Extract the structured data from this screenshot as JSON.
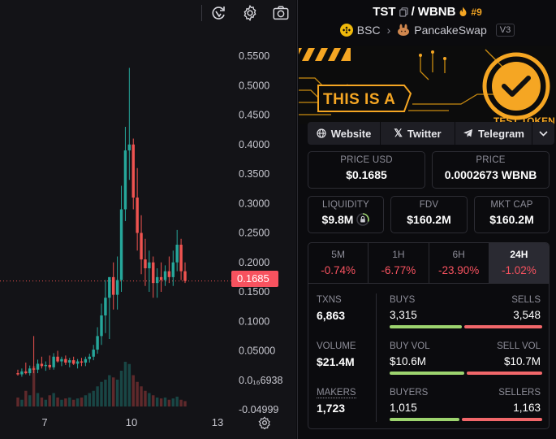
{
  "pair": {
    "base": "TST",
    "separator": "/",
    "quote": "WBNB",
    "rank": "#9"
  },
  "chain": {
    "name": "BSC",
    "dex": "PancakeSwap",
    "version": "V3"
  },
  "banner": {
    "text": "THIS IS A",
    "subtext": "TEST TOKEN"
  },
  "links": [
    {
      "label": "Website",
      "icon": "globe-icon"
    },
    {
      "label": "Twitter",
      "icon": "x-icon"
    },
    {
      "label": "Telegram",
      "icon": "telegram-icon"
    }
  ],
  "price_usd": {
    "label": "PRICE USD",
    "value": "$0.1685"
  },
  "price_native": {
    "label": "PRICE",
    "value": "0.0002673 WBNB"
  },
  "liquidity": {
    "label": "LIQUIDITY",
    "value": "$9.8M"
  },
  "fdv": {
    "label": "FDV",
    "value": "$160.2M"
  },
  "mkt_cap": {
    "label": "MKT CAP",
    "value": "$160.2M"
  },
  "timeframes": [
    {
      "label": "5M",
      "change": "-0.74%"
    },
    {
      "label": "1H",
      "change": "-6.77%"
    },
    {
      "label": "6H",
      "change": "-23.90%"
    },
    {
      "label": "24H",
      "change": "-1.02%"
    }
  ],
  "txns": {
    "label": "TXNS",
    "value": "6,863"
  },
  "buys": {
    "label": "BUYS",
    "value": "3,315"
  },
  "sells": {
    "label": "SELLS",
    "value": "3,548"
  },
  "volume": {
    "label": "VOLUME",
    "value": "$21.4M"
  },
  "buy_vol": {
    "label": "BUY VOL",
    "value": "$10.6M"
  },
  "sell_vol": {
    "label": "SELL VOL",
    "value": "$10.7M"
  },
  "makers": {
    "label": "MAKERS",
    "value": "1,723"
  },
  "buyers": {
    "label": "BUYERS",
    "value": "1,015"
  },
  "sellers": {
    "label": "SELLERS",
    "value": "1,163"
  },
  "ratios": {
    "buys": 0.483,
    "buy_vol": 0.498,
    "buyers": 0.466
  },
  "chart_data": {
    "type": "candlestick",
    "current_price_label": "0.1685",
    "current_price": 0.1685,
    "y_ticks": [
      {
        "v": 0.55,
        "label": "0.5500"
      },
      {
        "v": 0.5,
        "label": "0.5000"
      },
      {
        "v": 0.45,
        "label": "0.4500"
      },
      {
        "v": 0.4,
        "label": "0.4000"
      },
      {
        "v": 0.35,
        "label": "0.3500"
      },
      {
        "v": 0.3,
        "label": "0.3000"
      },
      {
        "v": 0.25,
        "label": "0.2500"
      },
      {
        "v": 0.2,
        "label": "0.2000"
      },
      {
        "v": 0.15,
        "label": "0.1500"
      },
      {
        "v": 0.1,
        "label": "0.1000"
      },
      {
        "v": 0.05,
        "label": "0.05000"
      },
      {
        "v": 0.0,
        "label": "0.0₁₆6938"
      },
      {
        "v": -0.05,
        "label": "-0.04999"
      }
    ],
    "x_ticks": [
      "7",
      "10",
      "13"
    ],
    "colors": {
      "up": "#26a69a",
      "down": "#ef5350",
      "bg": "#131317"
    },
    "candles": [
      {
        "o": 0.012,
        "h": 0.018,
        "l": 0.008,
        "c": 0.01
      },
      {
        "o": 0.01,
        "h": 0.02,
        "l": 0.006,
        "c": 0.015
      },
      {
        "o": 0.015,
        "h": 0.03,
        "l": 0.01,
        "c": 0.012
      },
      {
        "o": 0.012,
        "h": 0.025,
        "l": 0.008,
        "c": 0.02
      },
      {
        "o": 0.02,
        "h": 0.075,
        "l": 0.012,
        "c": 0.018
      },
      {
        "o": 0.018,
        "h": 0.035,
        "l": 0.012,
        "c": 0.028
      },
      {
        "o": 0.028,
        "h": 0.04,
        "l": 0.02,
        "c": 0.024
      },
      {
        "o": 0.024,
        "h": 0.032,
        "l": 0.016,
        "c": 0.026
      },
      {
        "o": 0.026,
        "h": 0.042,
        "l": 0.018,
        "c": 0.022
      },
      {
        "o": 0.022,
        "h": 0.046,
        "l": 0.018,
        "c": 0.04
      },
      {
        "o": 0.04,
        "h": 0.05,
        "l": 0.03,
        "c": 0.032
      },
      {
        "o": 0.032,
        "h": 0.04,
        "l": 0.024,
        "c": 0.036
      },
      {
        "o": 0.036,
        "h": 0.042,
        "l": 0.026,
        "c": 0.03
      },
      {
        "o": 0.03,
        "h": 0.038,
        "l": 0.022,
        "c": 0.034
      },
      {
        "o": 0.034,
        "h": 0.04,
        "l": 0.026,
        "c": 0.028
      },
      {
        "o": 0.028,
        "h": 0.036,
        "l": 0.02,
        "c": 0.032
      },
      {
        "o": 0.032,
        "h": 0.038,
        "l": 0.024,
        "c": 0.03
      },
      {
        "o": 0.03,
        "h": 0.04,
        "l": 0.024,
        "c": 0.036
      },
      {
        "o": 0.036,
        "h": 0.045,
        "l": 0.03,
        "c": 0.04
      },
      {
        "o": 0.04,
        "h": 0.06,
        "l": 0.034,
        "c": 0.052
      },
      {
        "o": 0.052,
        "h": 0.09,
        "l": 0.045,
        "c": 0.075
      },
      {
        "o": 0.075,
        "h": 0.13,
        "l": 0.06,
        "c": 0.11
      },
      {
        "o": 0.11,
        "h": 0.17,
        "l": 0.08,
        "c": 0.14
      },
      {
        "o": 0.14,
        "h": 0.175,
        "l": 0.07,
        "c": 0.175
      },
      {
        "o": 0.175,
        "h": 0.2,
        "l": 0.12,
        "c": 0.145
      },
      {
        "o": 0.145,
        "h": 0.21,
        "l": 0.12,
        "c": 0.17
      },
      {
        "o": 0.17,
        "h": 0.33,
        "l": 0.15,
        "c": 0.29
      },
      {
        "o": 0.29,
        "h": 0.43,
        "l": 0.27,
        "c": 0.39
      },
      {
        "o": 0.39,
        "h": 0.53,
        "l": 0.34,
        "c": 0.4
      },
      {
        "o": 0.4,
        "h": 0.41,
        "l": 0.29,
        "c": 0.31
      },
      {
        "o": 0.31,
        "h": 0.36,
        "l": 0.22,
        "c": 0.25
      },
      {
        "o": 0.25,
        "h": 0.28,
        "l": 0.18,
        "c": 0.205
      },
      {
        "o": 0.205,
        "h": 0.24,
        "l": 0.16,
        "c": 0.19
      },
      {
        "o": 0.19,
        "h": 0.22,
        "l": 0.15,
        "c": 0.2
      },
      {
        "o": 0.2,
        "h": 0.21,
        "l": 0.14,
        "c": 0.165
      },
      {
        "o": 0.165,
        "h": 0.19,
        "l": 0.14,
        "c": 0.175
      },
      {
        "o": 0.175,
        "h": 0.2,
        "l": 0.15,
        "c": 0.17
      },
      {
        "o": 0.17,
        "h": 0.195,
        "l": 0.16,
        "c": 0.185
      },
      {
        "o": 0.185,
        "h": 0.21,
        "l": 0.165,
        "c": 0.175
      },
      {
        "o": 0.175,
        "h": 0.22,
        "l": 0.16,
        "c": 0.2
      },
      {
        "o": 0.2,
        "h": 0.255,
        "l": 0.185,
        "c": 0.23
      },
      {
        "o": 0.23,
        "h": 0.24,
        "l": 0.17,
        "c": 0.185
      },
      {
        "o": 0.185,
        "h": 0.2,
        "l": 0.165,
        "c": 0.1685
      }
    ],
    "volumes": [
      0.2,
      0.15,
      0.35,
      0.25,
      0.9,
      0.3,
      0.2,
      0.15,
      0.25,
      0.3,
      0.2,
      0.15,
      0.18,
      0.2,
      0.15,
      0.18,
      0.2,
      0.25,
      0.3,
      0.35,
      0.45,
      0.55,
      0.6,
      0.7,
      0.65,
      0.6,
      0.8,
      1.0,
      0.95,
      0.7,
      0.55,
      0.45,
      0.35,
      0.3,
      0.25,
      0.2,
      0.18,
      0.2,
      0.15,
      0.18,
      0.22,
      0.15,
      0.12
    ]
  }
}
